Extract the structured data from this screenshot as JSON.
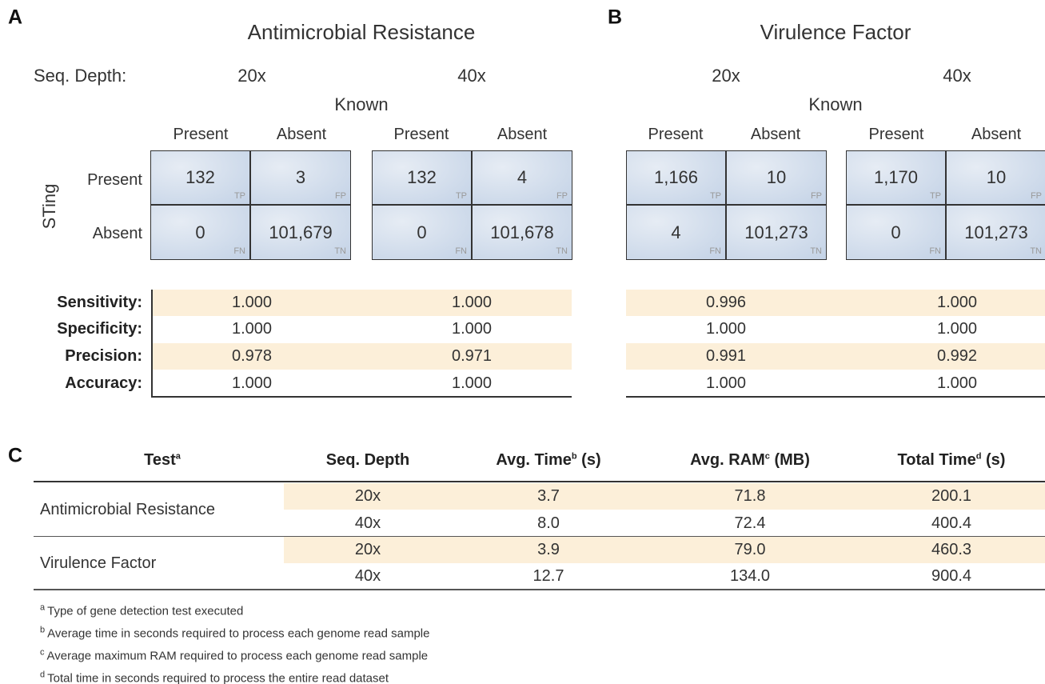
{
  "panel_a": {
    "letter": "A",
    "title": "Antimicrobial Resistance",
    "seq_depth_label": "Seq. Depth:",
    "known_label": "Known",
    "sting_label": "STing",
    "row_labels": [
      "Present",
      "Absent"
    ],
    "metric_names": [
      "Sensitivity:",
      "Specificity:",
      "Precision:",
      "Accuracy:"
    ],
    "matrices": [
      {
        "depth": "20x",
        "col_labels": [
          "Present",
          "Absent"
        ],
        "cells": [
          [
            {
              "value": "132",
              "tag": "TP"
            },
            {
              "value": "3",
              "tag": "FP"
            }
          ],
          [
            {
              "value": "0",
              "tag": "FN"
            },
            {
              "value": "101,679",
              "tag": "TN"
            }
          ]
        ]
      },
      {
        "depth": "40x",
        "col_labels": [
          "Present",
          "Absent"
        ],
        "cells": [
          [
            {
              "value": "132",
              "tag": "TP"
            },
            {
              "value": "4",
              "tag": "FP"
            }
          ],
          [
            {
              "value": "0",
              "tag": "FN"
            },
            {
              "value": "101,678",
              "tag": "TN"
            }
          ]
        ]
      }
    ],
    "metrics": [
      [
        "1.000",
        "1.000"
      ],
      [
        "1.000",
        "1.000"
      ],
      [
        "0.978",
        "0.971"
      ],
      [
        "1.000",
        "1.000"
      ]
    ]
  },
  "panel_b": {
    "letter": "B",
    "title": "Virulence Factor",
    "known_label": "Known",
    "matrices": [
      {
        "depth": "20x",
        "col_labels": [
          "Present",
          "Absent"
        ],
        "cells": [
          [
            {
              "value": "1,166",
              "tag": "TP"
            },
            {
              "value": "10",
              "tag": "FP"
            }
          ],
          [
            {
              "value": "4",
              "tag": "FN"
            },
            {
              "value": "101,273",
              "tag": "TN"
            }
          ]
        ]
      },
      {
        "depth": "40x",
        "col_labels": [
          "Present",
          "Absent"
        ],
        "cells": [
          [
            {
              "value": "1,170",
              "tag": "TP"
            },
            {
              "value": "10",
              "tag": "FP"
            }
          ],
          [
            {
              "value": "0",
              "tag": "FN"
            },
            {
              "value": "101,273",
              "tag": "TN"
            }
          ]
        ]
      }
    ],
    "metrics": [
      [
        "0.996",
        "1.000"
      ],
      [
        "1.000",
        "1.000"
      ],
      [
        "0.991",
        "0.992"
      ],
      [
        "1.000",
        "1.000"
      ]
    ]
  },
  "panel_c": {
    "letter": "C",
    "header": [
      {
        "text": "Test",
        "sup": "a"
      },
      {
        "text": "Seq. Depth"
      },
      {
        "text": "Avg. Time",
        "sup": "b",
        "suffix": " (s)"
      },
      {
        "text": "Avg. RAM",
        "sup": "c",
        "suffix": " (MB)"
      },
      {
        "text": "Total Time",
        "sup": "d",
        "suffix": " (s)"
      }
    ],
    "groups": [
      {
        "test": "Antimicrobial Resistance",
        "rows": [
          [
            "20x",
            "3.7",
            "71.8",
            "200.1"
          ],
          [
            "40x",
            "8.0",
            "72.4",
            "400.4"
          ]
        ]
      },
      {
        "test": "Virulence Factor",
        "rows": [
          [
            "20x",
            "3.9",
            "79.0",
            "460.3"
          ],
          [
            "40x",
            "12.7",
            "134.0",
            "900.4"
          ]
        ]
      }
    ],
    "footnotes": [
      {
        "sup": "a",
        "text": "Type of gene detection test executed"
      },
      {
        "sup": "b",
        "text": "Average time in seconds required to process each genome read sample"
      },
      {
        "sup": "c",
        "text": "Average maximum RAM required to process each genome read sample"
      },
      {
        "sup": "d",
        "text": "Total time in seconds required to process the entire read dataset"
      }
    ]
  }
}
